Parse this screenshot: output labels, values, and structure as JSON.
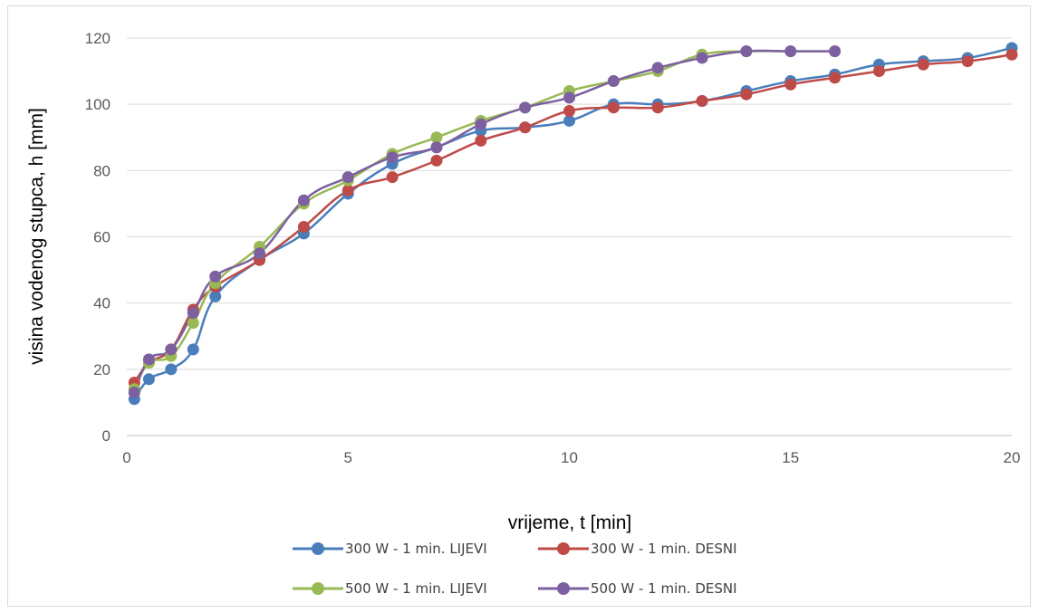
{
  "chart_data": {
    "type": "line",
    "title": "",
    "xlabel": "vrijeme, t [min]",
    "ylabel": "visina vodenog stupca, h [mm]",
    "xlim": [
      0,
      20
    ],
    "ylim": [
      0,
      120
    ],
    "xticks": [
      "0",
      "5",
      "10",
      "15",
      "20"
    ],
    "yticks": [
      "0",
      "20",
      "40",
      "60",
      "80",
      "100",
      "120"
    ],
    "grid": "horizontal",
    "legend": "bottom",
    "series": [
      {
        "name": "300 W - 1 min. LIJEVI",
        "color": "#4a7ebb",
        "x": [
          0.17,
          0.5,
          1,
          1.5,
          2,
          3,
          4,
          5,
          6,
          7,
          8,
          9,
          10,
          11,
          12,
          13,
          14,
          15,
          16,
          17,
          18,
          19,
          20
        ],
        "y": [
          11,
          17,
          20,
          26,
          42,
          53,
          61,
          73,
          82,
          87,
          92,
          93,
          95,
          100,
          100,
          101,
          104,
          107,
          109,
          112,
          113,
          114,
          117
        ]
      },
      {
        "name": "300 W - 1 min. DESNI",
        "color": "#be4b48",
        "x": [
          0.17,
          0.5,
          1,
          1.5,
          2,
          3,
          4,
          5,
          6,
          7,
          8,
          9,
          10,
          11,
          12,
          13,
          14,
          15,
          16,
          17,
          18,
          19,
          20
        ],
        "y": [
          16,
          22,
          26,
          38,
          45,
          53,
          63,
          74,
          78,
          83,
          89,
          93,
          98,
          99,
          99,
          101,
          103,
          106,
          108,
          110,
          112,
          113,
          115
        ]
      },
      {
        "name": "500 W - 1 min. LIJEVI",
        "color": "#98b954",
        "x": [
          0.17,
          0.5,
          1,
          1.5,
          2,
          3,
          4,
          5,
          6,
          7,
          8,
          9,
          10,
          11,
          12,
          13,
          14,
          15,
          16
        ],
        "y": [
          14,
          22,
          24,
          34,
          46,
          57,
          70,
          77,
          85,
          90,
          95,
          99,
          104,
          107,
          110,
          115,
          116,
          116,
          116
        ]
      },
      {
        "name": "500 W - 1 min. DESNI",
        "color": "#7d60a0",
        "x": [
          0.17,
          0.5,
          1,
          1.5,
          2,
          3,
          4,
          5,
          6,
          7,
          8,
          9,
          10,
          11,
          12,
          13,
          14,
          15,
          16
        ],
        "y": [
          13,
          23,
          26,
          37,
          48,
          55,
          71,
          78,
          84,
          87,
          94,
          99,
          102,
          107,
          111,
          114,
          116,
          116,
          116
        ]
      }
    ]
  }
}
